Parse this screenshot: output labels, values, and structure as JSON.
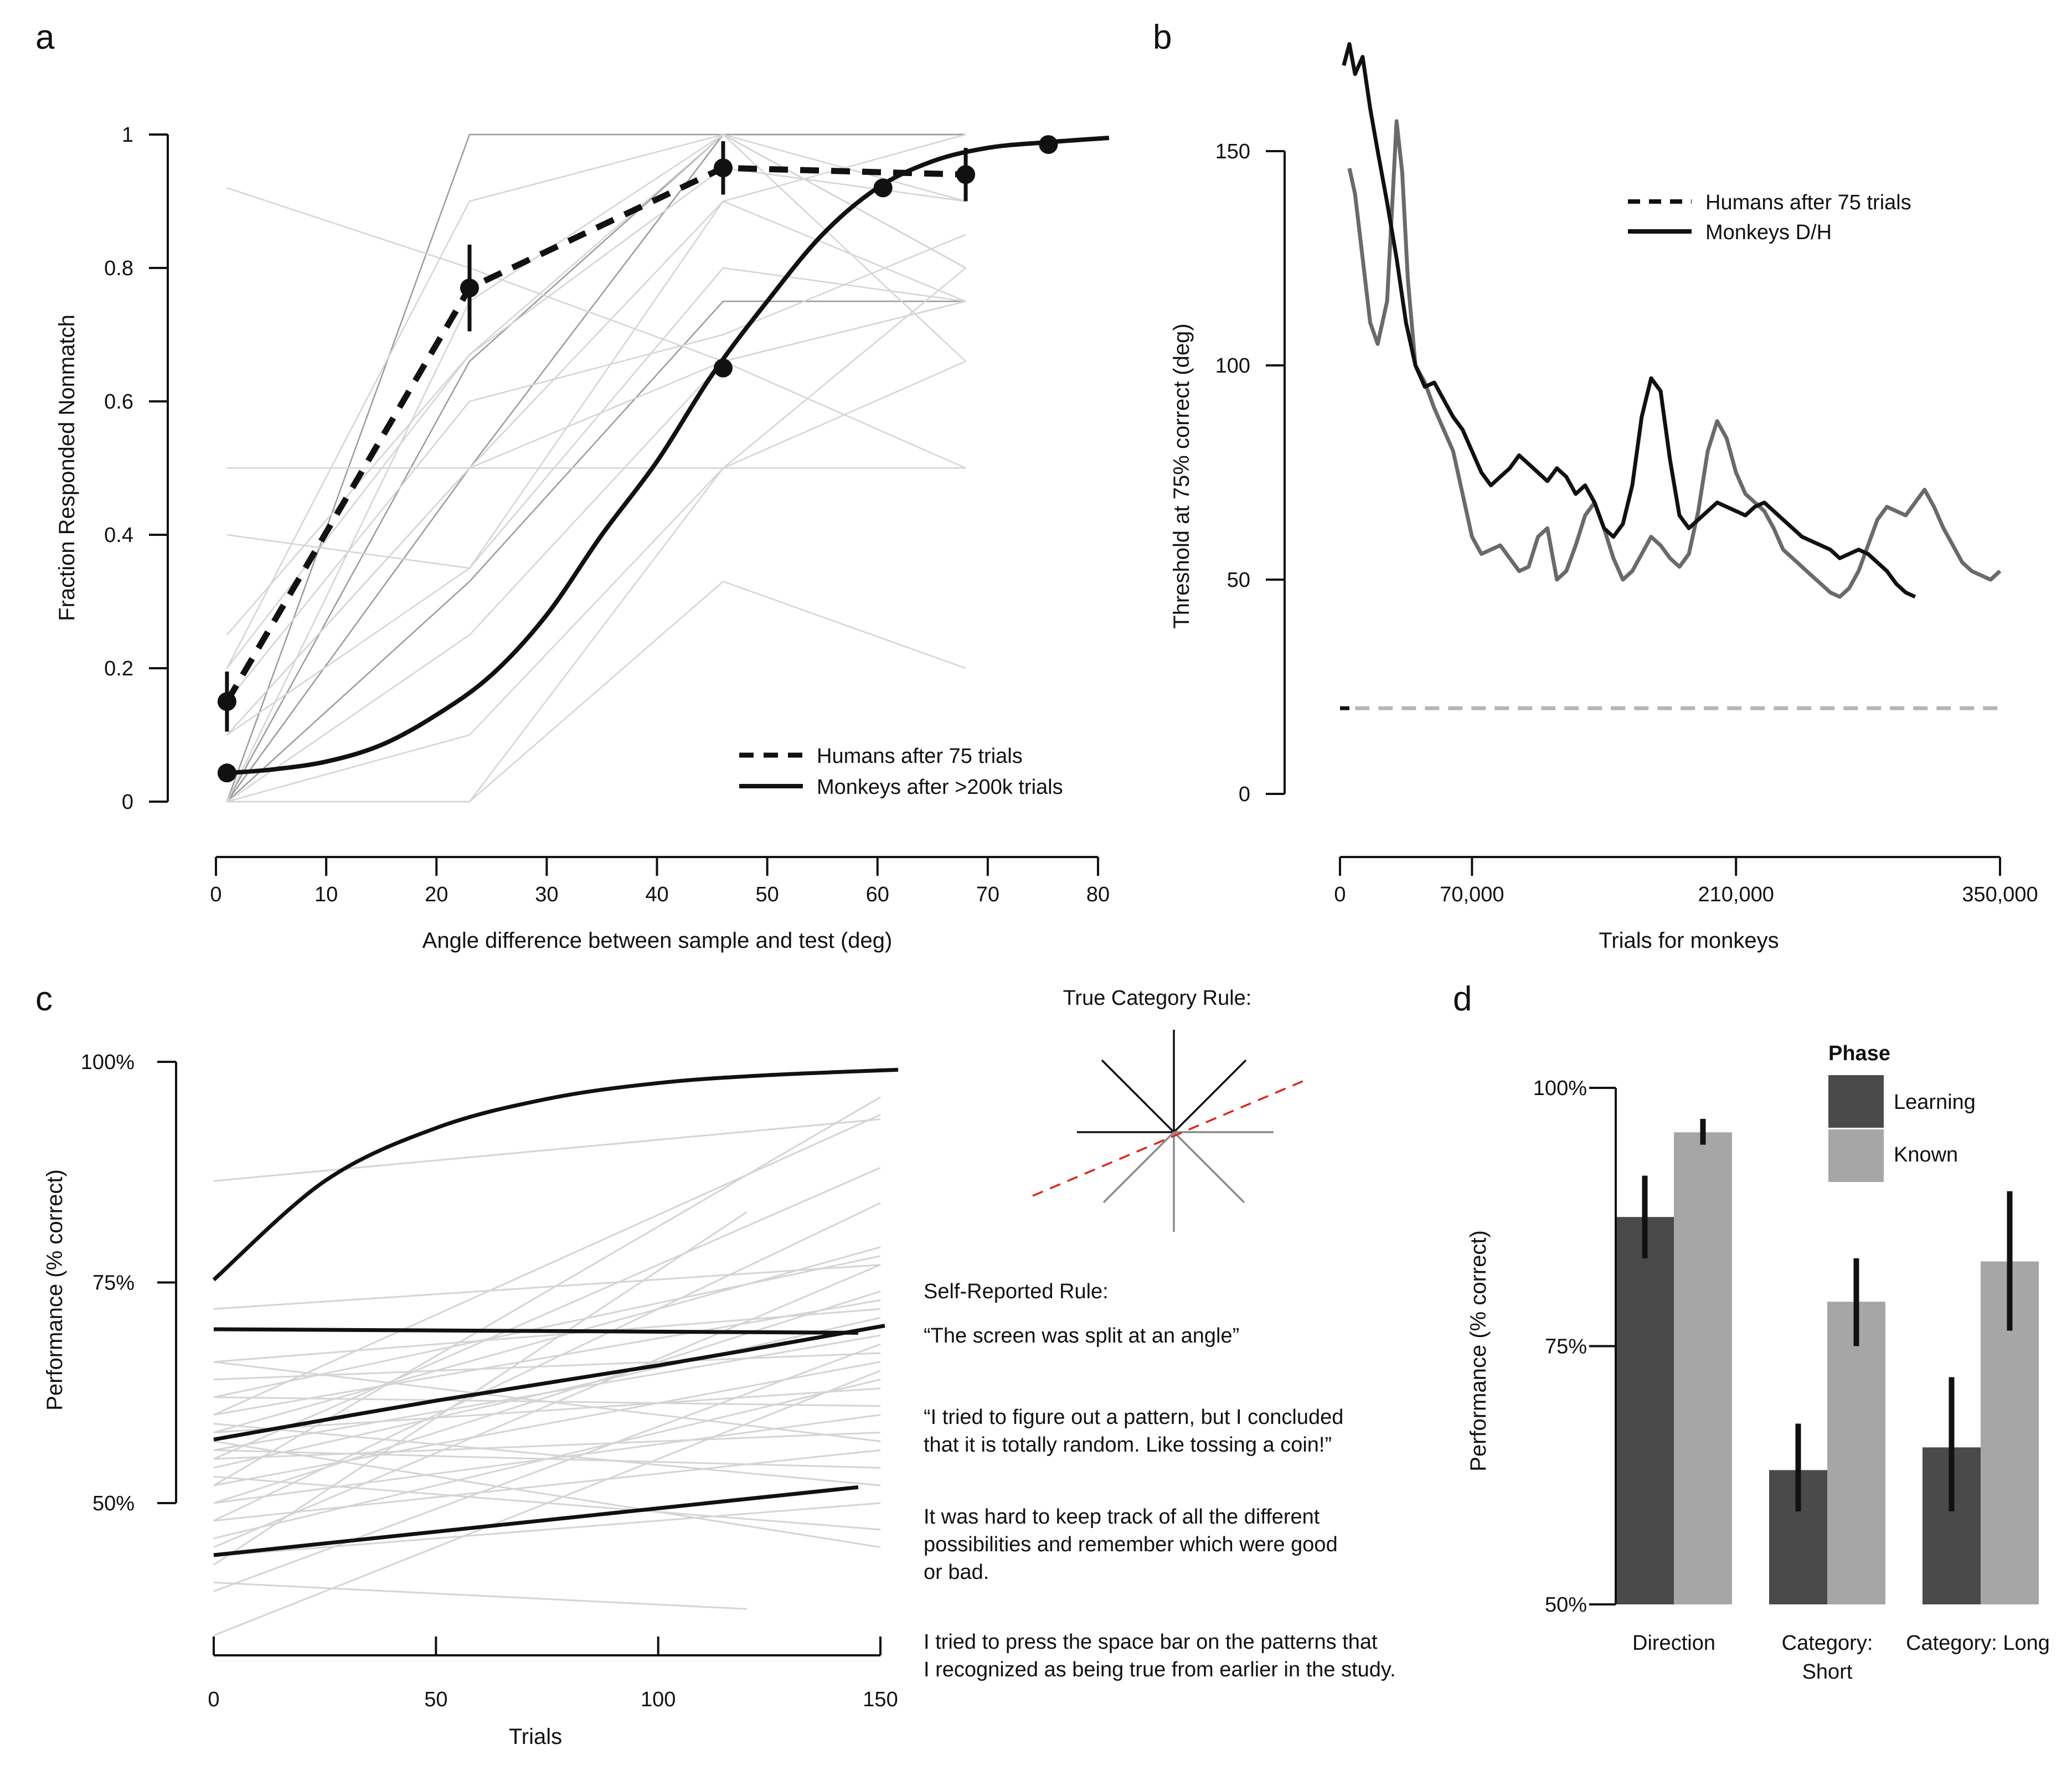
{
  "chart_data": [
    {
      "panel": "a",
      "type": "line",
      "xlabel": "Angle difference between sample and test (deg)",
      "ylabel": "Fraction Responded Nonmatch",
      "xlim": [
        0,
        80
      ],
      "ylim": [
        0,
        1
      ],
      "x_ticks": [
        "0",
        "10",
        "20",
        "30",
        "40",
        "50",
        "60",
        "70",
        "80"
      ],
      "y_ticks": [
        "0",
        "0.2",
        "0.4",
        "0.6",
        "0.8",
        "1"
      ],
      "series": [
        {
          "name": "Humans after 75 trials",
          "style": "dashed",
          "x": [
            1,
            23,
            46,
            68
          ],
          "y": [
            0.15,
            0.77,
            0.95,
            0.94
          ],
          "err": [
            0.045,
            0.065,
            0.04,
            0.04
          ]
        },
        {
          "name": "Monkeys after >200k trials",
          "style": "solid",
          "points_x": [
            1,
            46,
            60.5,
            75.5
          ],
          "points_y": [
            0.043,
            0.65,
            0.92,
            0.985
          ],
          "curve_x": [
            1,
            5,
            10,
            15,
            20,
            25,
            30,
            35,
            40,
            45,
            50,
            55,
            60,
            65,
            70,
            75,
            81
          ],
          "curve_y": [
            0.043,
            0.048,
            0.06,
            0.085,
            0.13,
            0.19,
            0.28,
            0.4,
            0.51,
            0.64,
            0.75,
            0.85,
            0.92,
            0.96,
            0.98,
            0.988,
            0.995
          ]
        }
      ],
      "individual_lines": [
        [
          0.0,
          0.33,
          0.75,
          0.75
        ],
        [
          0.0,
          0.5,
          1.0,
          1.0
        ],
        [
          0.0,
          0.66,
          1.0,
          0.8
        ],
        [
          0.1,
          0.5,
          0.9,
          0.75
        ],
        [
          0.2,
          0.67,
          0.95,
          0.9
        ],
        [
          0.0,
          1.0,
          1.0,
          1.0
        ],
        [
          0.1,
          0.5,
          0.5,
          0.5
        ],
        [
          0.0,
          0.25,
          0.66,
          0.75
        ],
        [
          0.25,
          0.67,
          1.0,
          0.66
        ],
        [
          0.5,
          0.5,
          0.66,
          0.5
        ],
        [
          0.92,
          0.8,
          0.66,
          0.75
        ],
        [
          0.0,
          0.0,
          0.33,
          0.2
        ],
        [
          0.0,
          0.1,
          0.5,
          0.8
        ],
        [
          0.4,
          0.35,
          0.9,
          1.0
        ],
        [
          0.0,
          0.75,
          1.0,
          0.8
        ],
        [
          0.2,
          0.9,
          1.0,
          0.9
        ],
        [
          0.1,
          0.35,
          0.8,
          0.75
        ],
        [
          0.0,
          0.0,
          0.5,
          0.66
        ],
        [
          0.15,
          0.6,
          0.7,
          0.85
        ]
      ],
      "individual_x": [
        1,
        23,
        46,
        68
      ]
    },
    {
      "panel": "b",
      "type": "line",
      "xlabel": "Trials for monkeys",
      "ylabel": "Threshold at 75% correct (deg)",
      "xlim": [
        0,
        350000
      ],
      "ylim": [
        0,
        150
      ],
      "x_ticks": [
        "0",
        "70,000",
        "210,000",
        "350,000"
      ],
      "y_ticks": [
        "0",
        "50",
        "100",
        "150"
      ],
      "series": [
        {
          "name": "Monkeys D/H",
          "color": "#111111",
          "x": [
            2000,
            5000,
            8000,
            12000,
            16000,
            20000,
            25000,
            30000,
            35000,
            40000,
            45000,
            50000,
            55000,
            60000,
            65000,
            70000,
            75000,
            80000,
            85000,
            90000,
            95000,
            100000,
            105000,
            110000,
            115000,
            120000,
            125000,
            130000,
            135000,
            140000,
            145000,
            150000,
            155000,
            160000,
            165000,
            170000,
            175000,
            180000,
            185000,
            190000,
            195000,
            200000,
            205000,
            210000,
            215000,
            220000,
            225000,
            230000,
            235000,
            240000,
            245000,
            250000,
            255000,
            260000,
            265000,
            270000,
            275000,
            280000,
            285000,
            290000,
            295000,
            300000,
            305000
          ],
          "y": [
            170,
            175,
            168,
            172,
            160,
            150,
            138,
            125,
            110,
            100,
            95,
            96,
            92,
            88,
            85,
            80,
            75,
            72,
            74,
            76,
            79,
            77,
            75,
            73,
            76,
            74,
            70,
            72,
            68,
            62,
            60,
            63,
            72,
            88,
            97,
            94,
            78,
            65,
            62,
            64,
            66,
            68,
            67,
            66,
            65,
            67,
            68,
            66,
            64,
            62,
            60,
            59,
            58,
            57,
            55,
            56,
            57,
            56,
            54,
            52,
            49,
            47,
            46
          ]
        },
        {
          "name": "",
          "color": "#6a6a6a",
          "x": [
            5000,
            8000,
            12000,
            16000,
            20000,
            25000,
            28000,
            30000,
            33000,
            36000,
            40000,
            45000,
            50000,
            55000,
            60000,
            65000,
            70000,
            75000,
            80000,
            85000,
            90000,
            95000,
            100000,
            105000,
            110000,
            115000,
            120000,
            125000,
            130000,
            135000,
            140000,
            145000,
            150000,
            155000,
            160000,
            165000,
            170000,
            175000,
            180000,
            185000,
            190000,
            195000,
            200000,
            205000,
            210000,
            215000,
            220000,
            225000,
            230000,
            235000,
            240000,
            245000,
            250000,
            255000,
            260000,
            265000,
            270000,
            275000,
            280000,
            285000,
            290000,
            295000,
            300000,
            305000,
            310000,
            315000,
            320000,
            325000,
            330000,
            335000,
            340000,
            345000,
            350000
          ],
          "y": [
            146,
            140,
            125,
            110,
            105,
            115,
            140,
            157,
            145,
            120,
            100,
            96,
            90,
            85,
            80,
            70,
            60,
            56,
            57,
            58,
            55,
            52,
            53,
            60,
            62,
            50,
            52,
            58,
            65,
            68,
            62,
            55,
            50,
            52,
            56,
            60,
            58,
            55,
            53,
            56,
            66,
            80,
            87,
            83,
            75,
            70,
            68,
            66,
            62,
            57,
            55,
            53,
            51,
            49,
            47,
            46,
            48,
            52,
            58,
            64,
            67,
            66,
            65,
            68,
            71,
            67,
            62,
            58,
            54,
            52,
            51,
            50,
            52
          ]
        }
      ],
      "humans_threshold": 20,
      "legend": [
        {
          "name": "Humans after 75 trials",
          "style": "dashed"
        },
        {
          "name": "Monkeys D/H",
          "style": "solid"
        }
      ]
    },
    {
      "panel": "c",
      "type": "line",
      "xlabel": "Trials",
      "ylabel": "Performance (% correct)",
      "xlim": [
        0,
        150
      ],
      "ylim": [
        50,
        100
      ],
      "x_ticks": [
        "0",
        "50",
        "100",
        "150"
      ],
      "y_ticks": [
        "50%",
        "75%",
        "100%"
      ],
      "highlighted_fits": [
        {
          "x": [
            0,
            25,
            50,
            75,
            100,
            125,
            154
          ],
          "y": [
            75.3,
            86.5,
            92.5,
            95.8,
            97.6,
            98.5,
            99.1
          ]
        },
        {
          "x": [
            0,
            145
          ],
          "y": [
            69.7,
            69.3
          ]
        },
        {
          "x": [
            0,
            50,
            100,
            151
          ],
          "y": [
            57.2,
            61.6,
            65.6,
            70.1
          ]
        },
        {
          "x": [
            0,
            145
          ],
          "y": [
            44.1,
            51.8
          ]
        }
      ],
      "individual_fits": [
        [
          0,
          150,
          86.5,
          93.5
        ],
        [
          0,
          150,
          60,
          94
        ],
        [
          0,
          150,
          52,
          96
        ],
        [
          0,
          150,
          55,
          88
        ],
        [
          0,
          150,
          48,
          84
        ],
        [
          0,
          150,
          58,
          79
        ],
        [
          0,
          150,
          62,
          78
        ],
        [
          0,
          150,
          45,
          77
        ],
        [
          0,
          150,
          50,
          74
        ],
        [
          0,
          150,
          60,
          73
        ],
        [
          0,
          150,
          54,
          71
        ],
        [
          0,
          150,
          66,
          72
        ],
        [
          0,
          150,
          56,
          69
        ],
        [
          0,
          150,
          40,
          68
        ],
        [
          0,
          150,
          64,
          67
        ],
        [
          0,
          150,
          52,
          66
        ],
        [
          0,
          150,
          46,
          64
        ],
        [
          0,
          150,
          58,
          63
        ],
        [
          0,
          150,
          62,
          61
        ],
        [
          0,
          150,
          50,
          60
        ],
        [
          0,
          150,
          55,
          58
        ],
        [
          0,
          150,
          66,
          57
        ],
        [
          0,
          150,
          48,
          56
        ],
        [
          0,
          150,
          56,
          54
        ],
        [
          0,
          150,
          59,
          52
        ],
        [
          0,
          150,
          44,
          50
        ],
        [
          0,
          150,
          53,
          47
        ],
        [
          0,
          150,
          57,
          45
        ],
        [
          0,
          120,
          41,
          38
        ],
        [
          0,
          150,
          35,
          65
        ],
        [
          0,
          120,
          43,
          83
        ],
        [
          0,
          150,
          72,
          77
        ]
      ],
      "panel_title": "True Category Rule:",
      "self_report_title": "Self-Reported Rule:",
      "quotes": [
        [
          "“The screen was split at an angle”"
        ],
        [
          "“I tried to figure out a pattern, but I concluded",
          "that it is totally random. Like tossing a coin!”"
        ],
        [
          "It was hard to keep track of all the different",
          "possibilities and remember which were good",
          "or bad."
        ],
        [
          "I tried to press the space bar on the patterns that",
          "I recognized as being true from earlier in the study."
        ]
      ]
    },
    {
      "panel": "d",
      "type": "bar",
      "ylabel": "Performance (% correct)",
      "ylim": [
        50,
        100
      ],
      "y_ticks": [
        "50%",
        "75%",
        "100%"
      ],
      "categories": [
        [
          "Direction"
        ],
        [
          "Category:",
          "Short"
        ],
        [
          "Category: Long"
        ]
      ],
      "legend_title": "Phase",
      "series": [
        {
          "name": "Learning",
          "color": "#4a4a4a",
          "values": [
            87.5,
            63.0,
            65.2
          ],
          "err_low": [
            83.5,
            59.0,
            59.0
          ],
          "err_high": [
            91.5,
            67.5,
            72.0
          ]
        },
        {
          "name": "Known",
          "color": "#a6a6a6",
          "values": [
            95.7,
            79.3,
            83.2
          ],
          "err_low": [
            94.5,
            75.0,
            76.5
          ],
          "err_high": [
            97.0,
            83.5,
            90.0
          ]
        }
      ]
    }
  ],
  "panel_letters": [
    "a",
    "b",
    "c",
    "d"
  ],
  "colors": {
    "main": "#111111",
    "faint_line": "#d4d4d4",
    "grey_series": "#6a6a6a",
    "humans_dash_b": "#b5b5b5",
    "rule_dashed": "#e0241b",
    "rule_grey": "#8a8a8a"
  }
}
